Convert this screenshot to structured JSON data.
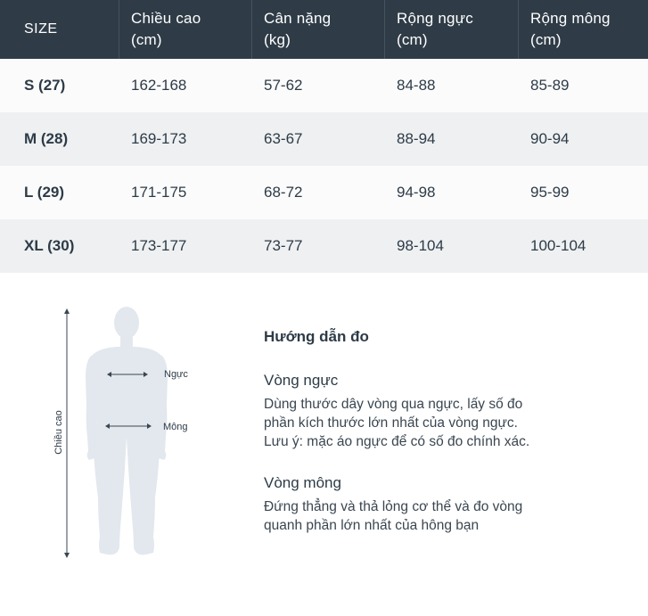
{
  "table": {
    "headers": [
      {
        "line1": "SIZE",
        "line2": ""
      },
      {
        "line1": "Chiều cao",
        "line2": "(cm)"
      },
      {
        "line1": "Cân nặng",
        "line2": "(kg)"
      },
      {
        "line1": "Rộng ngực",
        "line2": "(cm)"
      },
      {
        "line1": "Rộng mông",
        "line2": "(cm)"
      }
    ],
    "rows": [
      [
        "S (27)",
        "162-168",
        "57-62",
        "84-88",
        "85-89"
      ],
      [
        "M (28)",
        "169-173",
        "63-67",
        "88-94",
        "90-94"
      ],
      [
        "L (29)",
        "171-175",
        "68-72",
        "94-98",
        "95-99"
      ],
      [
        "XL (30)",
        "173-177",
        "73-77",
        "98-104",
        "100-104"
      ]
    ]
  },
  "figure": {
    "height_label": "Chiều cao",
    "chest_label": "Ngực",
    "hip_label": "Mông"
  },
  "guide": {
    "title": "Hướng dẫn đo",
    "chest_heading": "Vòng ngực",
    "chest_text_lines": [
      "Dùng thước dây vòng qua ngực, lấy số đo",
      "phần kích thước lớn nhất của vòng ngực.",
      "Lưu ý: mặc áo ngực để có số đo chính xác."
    ],
    "hip_heading": "Vòng mông",
    "hip_text_lines": [
      "Đứng thẳng và thả lỏng cơ thể và đo vòng",
      "quanh phần lớn nhất của hông bạn"
    ]
  },
  "colors": {
    "header_bg": "#2f3c47",
    "row_alt_bg": "#eef0f2",
    "text": "#2d3b47",
    "silhouette": "#e3e8ee"
  }
}
